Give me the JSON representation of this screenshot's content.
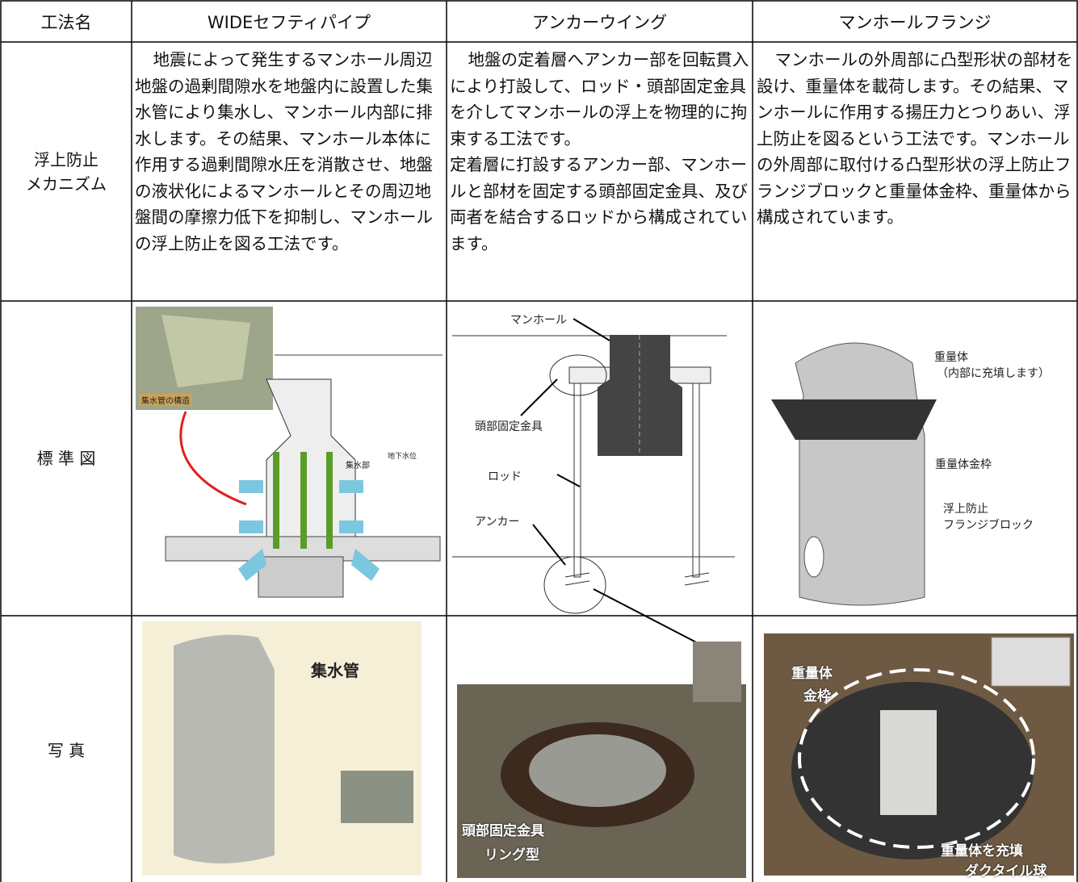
{
  "table": {
    "header": [
      "工法名",
      "WIDEセフティパイプ",
      "アンカーウイング",
      "マンホールフランジ"
    ],
    "rows": [
      {
        "label": "浮上防止\nメカニズム",
        "cells": [
          [
            "地震によって発生するマンホール周辺地盤の過剰間隙水を地盤内に設置した集水管により集水し、マンホール内部に排水します。その結果、マンホール本体に作用する過剰間隙水圧を消散させ、地盤の液状化によるマンホールとその周辺地盤間の摩擦力低下を抑制し、マンホールの浮上防止を図る工法です。"
          ],
          [
            "地盤の定着層へアンカー部を回転貫入により打設して、ロッド・頭部固定金具を介してマンホールの浮上を物理的に拘束する工法です。",
            "定着層に打設するアンカー部、マンホールと部材を固定する頭部固定金具、及び両者を結合するロッドから構成されています。"
          ],
          [
            "マンホールの外周部に凸型形状の部材を設け、重量体を載荷します。その結果、マンホールに作用する揚圧力とつりあい、浮上防止を図るという工法です。マンホールの外周部に取付ける凸型形状の浮上防止フランジブロックと重量体金枠、重量体から構成されています。"
          ]
        ]
      },
      {
        "label": "標 準 図"
      },
      {
        "label": "写 真"
      }
    ]
  },
  "figures": {
    "diagram": [
      [
        "集水管の構造",
        "集水部",
        "地下水位"
      ],
      [
        "マンホール",
        "頭部固定金具",
        "ロッド",
        "アンカー"
      ],
      [
        "重量体",
        "（内部に充填します）",
        "重量体金枠",
        "浮上防止",
        "フランジブロック"
      ]
    ],
    "photo": [
      [
        "集水管"
      ],
      [
        "頭部固定金具",
        "リング型"
      ],
      [
        "重量体",
        "金枠",
        "重量体を充填",
        "ダクタイル球"
      ]
    ]
  }
}
